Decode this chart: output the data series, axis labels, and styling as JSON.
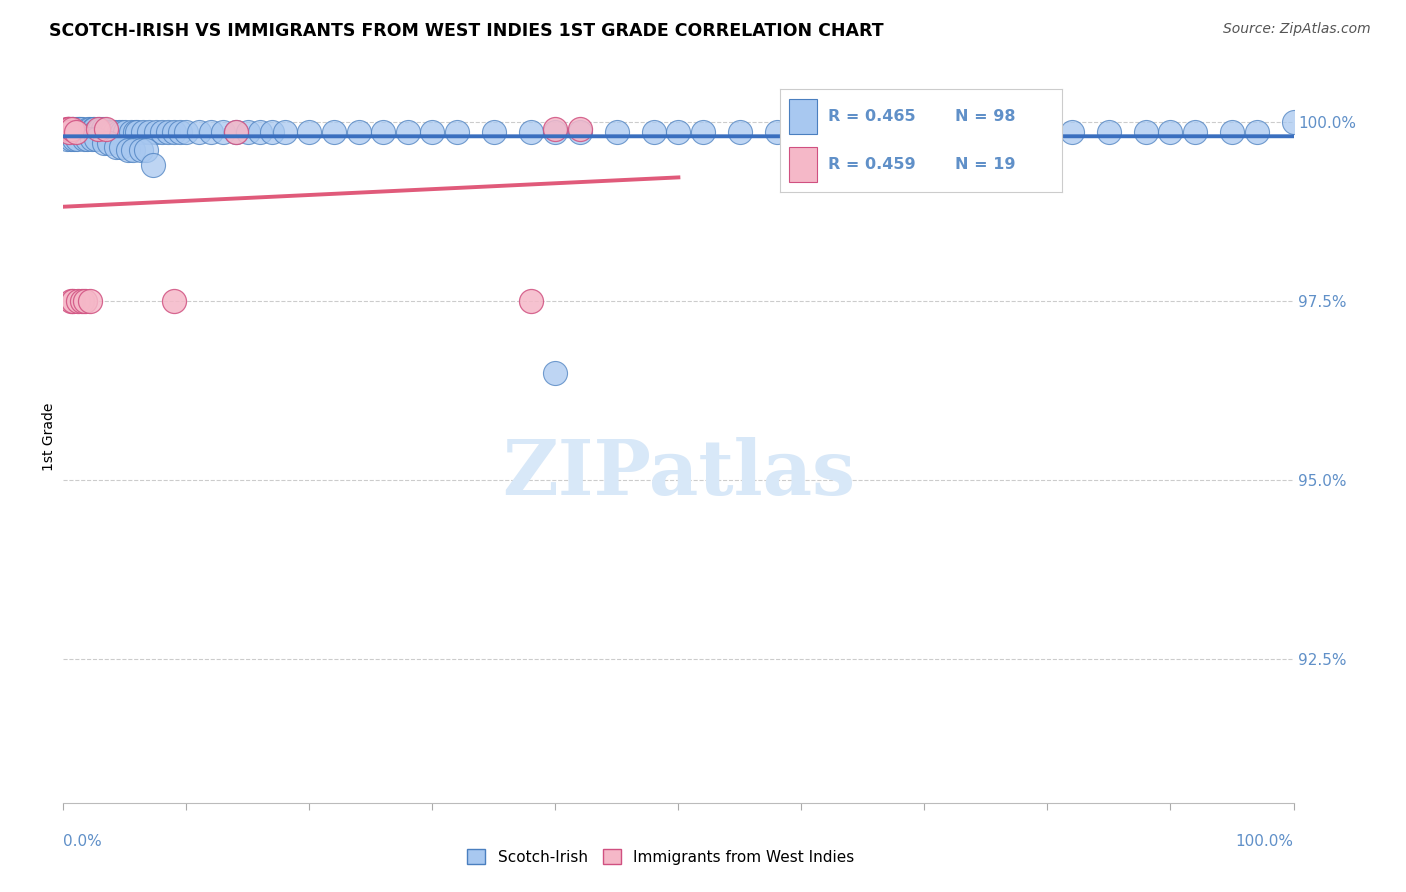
{
  "title": "SCOTCH-IRISH VS IMMIGRANTS FROM WEST INDIES 1ST GRADE CORRELATION CHART",
  "source": "Source: ZipAtlas.com",
  "ylabel": "1st Grade",
  "xmin": 0.0,
  "xmax": 1.0,
  "ymin": 0.905,
  "ymax": 1.007,
  "legend1_r": "0.465",
  "legend1_n": "98",
  "legend2_r": "0.459",
  "legend2_n": "19",
  "blue_color": "#A8C8F0",
  "pink_color": "#F5B8C8",
  "blue_edge_color": "#4A7FBF",
  "pink_edge_color": "#D05080",
  "blue_line_color": "#3A6FBF",
  "pink_line_color": "#E05A7A",
  "watermark_color": "#D8E8F8",
  "grid_color": "#CCCCCC",
  "axis_label_color": "#6090C8",
  "right_yticks": [
    1.0,
    0.975,
    0.95,
    0.925
  ],
  "right_yticklabels": [
    "100.0%",
    "97.5%",
    "95.0%",
    "92.5%"
  ],
  "blue_x": [
    0.005,
    0.007,
    0.008,
    0.01,
    0.01,
    0.012,
    0.013,
    0.014,
    0.015,
    0.016,
    0.018,
    0.02,
    0.022,
    0.024,
    0.025,
    0.026,
    0.028,
    0.03,
    0.032,
    0.034,
    0.036,
    0.038,
    0.04,
    0.042,
    0.045,
    0.048,
    0.05,
    0.055,
    0.058,
    0.06,
    0.065,
    0.07,
    0.075,
    0.08,
    0.085,
    0.09,
    0.095,
    0.1,
    0.11,
    0.12,
    0.13,
    0.14,
    0.15,
    0.16,
    0.17,
    0.18,
    0.2,
    0.22,
    0.24,
    0.26,
    0.28,
    0.3,
    0.32,
    0.35,
    0.38,
    0.4,
    0.42,
    0.45,
    0.48,
    0.5,
    0.52,
    0.55,
    0.58,
    0.6,
    0.62,
    0.65,
    0.68,
    0.7,
    0.72,
    0.75,
    0.78,
    0.8,
    0.82,
    0.85,
    0.88,
    0.9,
    0.92,
    0.95,
    0.97,
    1.0,
    0.003,
    0.006,
    0.009,
    0.011,
    0.017,
    0.019,
    0.023,
    0.027,
    0.033,
    0.037,
    0.043,
    0.047,
    0.053,
    0.057,
    0.063,
    0.067,
    0.073,
    0.4
  ],
  "blue_y": [
    0.999,
    0.999,
    0.999,
    0.999,
    0.9985,
    0.999,
    0.999,
    0.999,
    0.999,
    0.9985,
    0.9985,
    0.999,
    0.999,
    0.999,
    0.999,
    0.9985,
    0.9985,
    0.999,
    0.999,
    0.9985,
    0.9985,
    0.9985,
    0.9985,
    0.9985,
    0.9985,
    0.9985,
    0.9985,
    0.9985,
    0.9985,
    0.9985,
    0.9985,
    0.9985,
    0.9985,
    0.9985,
    0.9985,
    0.9985,
    0.9985,
    0.9985,
    0.9985,
    0.9985,
    0.9985,
    0.9985,
    0.9985,
    0.9985,
    0.9985,
    0.9985,
    0.9985,
    0.9985,
    0.9985,
    0.9985,
    0.9985,
    0.9985,
    0.9985,
    0.9985,
    0.9985,
    0.9985,
    0.9985,
    0.9985,
    0.9985,
    0.9985,
    0.9985,
    0.9985,
    0.9985,
    0.9985,
    0.9985,
    0.9985,
    0.9985,
    0.9985,
    0.9985,
    0.9985,
    0.9985,
    0.9985,
    0.9985,
    0.9985,
    0.9985,
    0.9985,
    0.9985,
    0.9985,
    0.9985,
    1.0,
    0.9975,
    0.9975,
    0.9975,
    0.9975,
    0.9975,
    0.9975,
    0.9975,
    0.9975,
    0.997,
    0.997,
    0.9965,
    0.9965,
    0.996,
    0.996,
    0.996,
    0.996,
    0.994,
    0.965
  ],
  "pink_x": [
    0.003,
    0.004,
    0.005,
    0.005,
    0.006,
    0.007,
    0.008,
    0.01,
    0.012,
    0.015,
    0.018,
    0.022,
    0.028,
    0.035,
    0.09,
    0.14,
    0.38,
    0.4,
    0.42
  ],
  "pink_y": [
    0.999,
    0.999,
    0.999,
    0.9985,
    0.975,
    0.999,
    0.975,
    0.9985,
    0.975,
    0.975,
    0.975,
    0.975,
    0.999,
    0.999,
    0.975,
    0.9985,
    0.975,
    0.999,
    0.999
  ]
}
